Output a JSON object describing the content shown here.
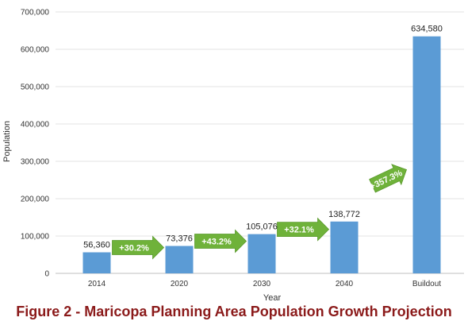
{
  "caption": "Figure 2 - Maricopa Planning Area Population Growth Projection",
  "chart_data": {
    "type": "bar",
    "title": "",
    "xlabel": "Year",
    "ylabel": "Population",
    "ylim": [
      0,
      700000
    ],
    "yticks": [
      0,
      100000,
      200000,
      300000,
      400000,
      500000,
      600000,
      700000
    ],
    "ytick_labels": [
      "0",
      "100,000",
      "200,000",
      "300,000",
      "400,000",
      "500,000",
      "600,000",
      "700,000"
    ],
    "categories": [
      "2014",
      "2020",
      "2030",
      "2040",
      "Buildout"
    ],
    "values": [
      56360,
      73376,
      105076,
      138772,
      634580
    ],
    "value_labels": [
      "56,360",
      "73,376",
      "105,076",
      "138,772",
      "634,580"
    ],
    "grid": true,
    "bar_color": "#5b9bd5",
    "growth_annotations": [
      {
        "from": "2014",
        "to": "2020",
        "label": "+30.2%"
      },
      {
        "from": "2020",
        "to": "2030",
        "label": "+43.2%"
      },
      {
        "from": "2030",
        "to": "2040",
        "label": "+32.1%"
      },
      {
        "from": "2040",
        "to": "Buildout",
        "label": "+357.3%"
      }
    ],
    "arrow_color": "#6fb23a"
  }
}
